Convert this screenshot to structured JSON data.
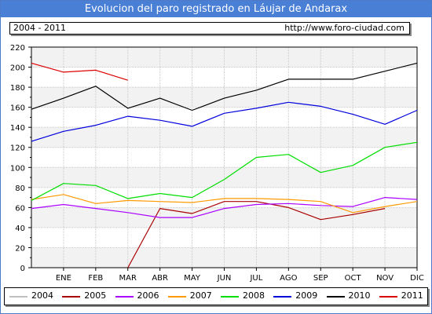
{
  "header": {
    "title": "Evolucion del paro registrado en Láujar de Andarax",
    "period": "2004 - 2011",
    "url": "http://www.foro-ciudad.com"
  },
  "colors": {
    "title_bar": "#4a7fd6",
    "plot_band": "#f2f2f2",
    "grid": "#c8c8c8"
  },
  "chart_data": {
    "type": "line",
    "title": "Evolucion del paro registrado en Láujar de Andarax",
    "xlabel": "",
    "ylabel": "",
    "categories": [
      "ENE",
      "FEB",
      "MAR",
      "ABR",
      "MAY",
      "JUN",
      "JUL",
      "AGO",
      "SEP",
      "OCT",
      "NOV",
      "DIC"
    ],
    "ylim": [
      0,
      220
    ],
    "yticks": [
      0,
      20,
      40,
      60,
      80,
      100,
      120,
      140,
      160,
      180,
      200,
      220
    ],
    "grid": true,
    "legend_position": "bottom",
    "series": [
      {
        "name": "2004",
        "color": "#c0c0c0",
        "x": [],
        "values": []
      },
      {
        "name": "2005",
        "color": "#aa0000",
        "x": [
          3,
          4,
          5,
          6,
          7,
          8,
          9,
          10,
          11,
          12
        ],
        "values": [
          0,
          59,
          54,
          66,
          66,
          60,
          48,
          53,
          59,
          null
        ]
      },
      {
        "name": "2006",
        "color": "#aa00ff",
        "x": [
          0,
          1,
          2,
          3,
          4,
          5,
          6,
          7,
          8,
          9,
          10,
          11,
          12
        ],
        "values": [
          59,
          63,
          59,
          55,
          50,
          50,
          59,
          63,
          64,
          62,
          61,
          70,
          68
        ]
      },
      {
        "name": "2007",
        "color": "#ff9900",
        "x": [
          0,
          1,
          2,
          3,
          4,
          5,
          6,
          7,
          8,
          9,
          10,
          11,
          12
        ],
        "values": [
          68,
          73,
          64,
          67,
          66,
          65,
          69,
          69,
          68,
          66,
          55,
          61,
          66
        ]
      },
      {
        "name": "2008",
        "color": "#00dd00",
        "x": [
          0,
          1,
          2,
          3,
          4,
          5,
          6,
          7,
          8,
          9,
          10,
          11,
          12
        ],
        "values": [
          67,
          84,
          82,
          69,
          74,
          70,
          88,
          110,
          113,
          95,
          102,
          120,
          125
        ]
      },
      {
        "name": "2009",
        "color": "#0000dd",
        "x": [
          0,
          1,
          2,
          3,
          4,
          5,
          6,
          7,
          8,
          9,
          10,
          11,
          12
        ],
        "values": [
          126,
          136,
          142,
          151,
          147,
          141,
          154,
          159,
          165,
          161,
          153,
          143,
          157
        ]
      },
      {
        "name": "2010",
        "color": "#000000",
        "x": [
          0,
          1,
          2,
          3,
          4,
          5,
          6,
          7,
          8,
          9,
          10,
          11,
          12
        ],
        "values": [
          158,
          169,
          181,
          159,
          169,
          157,
          169,
          177,
          188,
          188,
          188,
          196,
          204
        ]
      },
      {
        "name": "2011",
        "color": "#dd0000",
        "x": [
          0,
          1,
          2,
          3
        ],
        "values": [
          204,
          195,
          197,
          187
        ]
      }
    ]
  }
}
